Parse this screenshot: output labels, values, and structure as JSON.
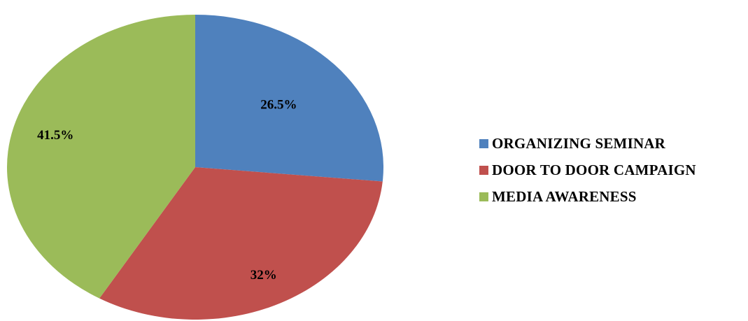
{
  "chart_data": {
    "type": "pie",
    "categories": [
      "ORGANIZING SEMINAR",
      "DOOR TO DOOR CAMPAIGN",
      "MEDIA AWARENESS"
    ],
    "values": [
      26.5,
      32,
      41.5
    ],
    "data_labels": [
      "26.5%",
      "32%",
      "41.5%"
    ],
    "colors": [
      "#4f81bd",
      "#c0504d",
      "#9bbb59"
    ],
    "title": "",
    "legend_position": "right"
  }
}
